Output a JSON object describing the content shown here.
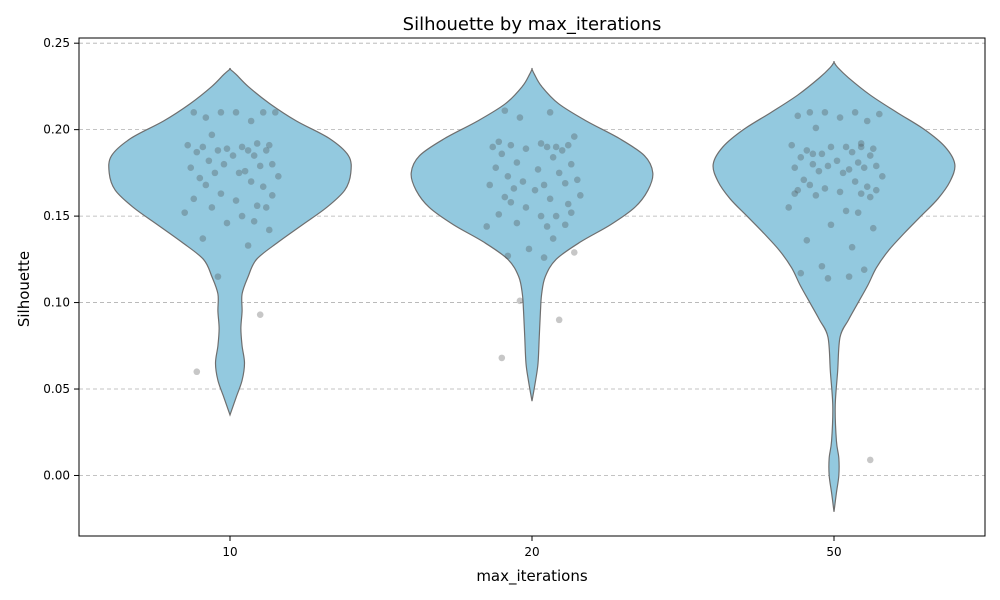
{
  "chart_data": {
    "type": "violin",
    "title": "Silhouette by max_iterations",
    "xlabel": "max_iterations",
    "ylabel": "Silhouette",
    "categories": [
      "10",
      "20",
      "50"
    ],
    "ylim": [
      -0.035,
      0.253
    ],
    "yticks": [
      0.0,
      0.05,
      0.1,
      0.15,
      0.2,
      0.25
    ],
    "ytick_labels": [
      "0.00",
      "0.05",
      "0.10",
      "0.15",
      "0.20",
      "0.25"
    ],
    "grid": {
      "y": true,
      "style": "dashed"
    },
    "colors": {
      "violin_fill": "#93c9df",
      "violin_edge": "#6e6e6e",
      "points": "#444444"
    },
    "violins": [
      {
        "category": "10",
        "range": [
          0.035,
          0.235
        ],
        "profile": [
          [
            0.035,
            0.0
          ],
          [
            0.045,
            0.05
          ],
          [
            0.055,
            0.1
          ],
          [
            0.065,
            0.12
          ],
          [
            0.075,
            0.1
          ],
          [
            0.085,
            0.09
          ],
          [
            0.095,
            0.1
          ],
          [
            0.105,
            0.1
          ],
          [
            0.115,
            0.15
          ],
          [
            0.125,
            0.22
          ],
          [
            0.135,
            0.4
          ],
          [
            0.145,
            0.6
          ],
          [
            0.155,
            0.8
          ],
          [
            0.165,
            0.95
          ],
          [
            0.175,
            1.0
          ],
          [
            0.185,
            0.98
          ],
          [
            0.195,
            0.82
          ],
          [
            0.205,
            0.55
          ],
          [
            0.215,
            0.33
          ],
          [
            0.225,
            0.15
          ],
          [
            0.232,
            0.05
          ],
          [
            0.235,
            0.0
          ]
        ]
      },
      {
        "category": "20",
        "range": [
          0.043,
          0.235
        ],
        "profile": [
          [
            0.043,
            0.0
          ],
          [
            0.055,
            0.03
          ],
          [
            0.065,
            0.05
          ],
          [
            0.08,
            0.06
          ],
          [
            0.095,
            0.07
          ],
          [
            0.105,
            0.08
          ],
          [
            0.115,
            0.11
          ],
          [
            0.125,
            0.2
          ],
          [
            0.135,
            0.4
          ],
          [
            0.145,
            0.65
          ],
          [
            0.155,
            0.85
          ],
          [
            0.165,
            0.96
          ],
          [
            0.175,
            1.0
          ],
          [
            0.185,
            0.93
          ],
          [
            0.195,
            0.72
          ],
          [
            0.205,
            0.45
          ],
          [
            0.215,
            0.22
          ],
          [
            0.225,
            0.08
          ],
          [
            0.232,
            0.02
          ],
          [
            0.235,
            0.0
          ]
        ]
      },
      {
        "category": "50",
        "range": [
          -0.021,
          0.239
        ],
        "profile": [
          [
            -0.021,
            0.0
          ],
          [
            -0.01,
            0.02
          ],
          [
            0.0,
            0.04
          ],
          [
            0.01,
            0.04
          ],
          [
            0.02,
            0.02
          ],
          [
            0.04,
            0.01
          ],
          [
            0.06,
            0.03
          ],
          [
            0.08,
            0.05
          ],
          [
            0.09,
            0.12
          ],
          [
            0.1,
            0.2
          ],
          [
            0.11,
            0.28
          ],
          [
            0.12,
            0.35
          ],
          [
            0.13,
            0.45
          ],
          [
            0.14,
            0.58
          ],
          [
            0.15,
            0.72
          ],
          [
            0.16,
            0.86
          ],
          [
            0.17,
            0.96
          ],
          [
            0.18,
            1.0
          ],
          [
            0.19,
            0.92
          ],
          [
            0.2,
            0.75
          ],
          [
            0.21,
            0.52
          ],
          [
            0.22,
            0.3
          ],
          [
            0.23,
            0.12
          ],
          [
            0.236,
            0.03
          ],
          [
            0.239,
            0.0
          ]
        ]
      }
    ],
    "points": [
      {
        "category": "10",
        "jitter": [
          -0.08,
          0.07,
          -0.03,
          0.15,
          -0.12,
          0.02,
          0.11,
          -0.06,
          0.09,
          -0.14,
          0.04,
          -0.01,
          0.13,
          -0.09,
          0.06,
          -0.04,
          0.12,
          -0.11,
          0.01,
          0.08,
          -0.07,
          0.14,
          -0.02,
          0.1,
          -0.13,
          0.05,
          -0.05,
          0.03,
          0.16,
          -0.1,
          0.07,
          -0.08,
          0.11,
          -0.03,
          0.14,
          -0.12,
          0.02,
          0.09,
          -0.06,
          0.12,
          -0.15,
          0.04,
          0.08,
          -0.01,
          0.13,
          -0.09,
          0.06,
          -0.04,
          0.1,
          -0.11
        ],
        "values": [
          0.207,
          0.205,
          0.21,
          0.21,
          0.21,
          0.21,
          0.21,
          0.197,
          0.192,
          0.191,
          0.19,
          0.189,
          0.191,
          0.19,
          0.188,
          0.188,
          0.188,
          0.187,
          0.185,
          0.185,
          0.182,
          0.18,
          0.18,
          0.179,
          0.178,
          0.176,
          0.175,
          0.175,
          0.173,
          0.172,
          0.17,
          0.168,
          0.167,
          0.163,
          0.162,
          0.16,
          0.159,
          0.156,
          0.155,
          0.155,
          0.152,
          0.15,
          0.147,
          0.146,
          0.142,
          0.137,
          0.133,
          0.115,
          0.093,
          0.06
        ]
      },
      {
        "category": "20",
        "jitter": [
          -0.09,
          0.06,
          -0.04,
          0.14,
          -0.11,
          0.03,
          0.12,
          -0.07,
          0.08,
          -0.13,
          0.05,
          -0.02,
          0.1,
          -0.1,
          0.07,
          -0.05,
          0.13,
          -0.12,
          0.02,
          0.09,
          -0.08,
          0.15,
          -0.03,
          0.11,
          -0.14,
          0.04,
          -0.06,
          0.01,
          0.16,
          -0.09,
          0.06,
          -0.07,
          0.12,
          -0.02,
          0.13,
          -0.11,
          0.03,
          0.08,
          -0.05,
          0.11,
          -0.15,
          0.05,
          0.07,
          -0.01,
          0.14,
          -0.08,
          0.04,
          -0.04,
          0.09,
          -0.1
        ],
        "values": [
          0.211,
          0.21,
          0.207,
          0.196,
          0.193,
          0.192,
          0.191,
          0.191,
          0.19,
          0.19,
          0.19,
          0.189,
          0.188,
          0.186,
          0.184,
          0.181,
          0.18,
          0.178,
          0.177,
          0.175,
          0.173,
          0.171,
          0.17,
          0.169,
          0.168,
          0.168,
          0.166,
          0.165,
          0.162,
          0.161,
          0.16,
          0.158,
          0.157,
          0.155,
          0.152,
          0.151,
          0.15,
          0.15,
          0.146,
          0.145,
          0.144,
          0.144,
          0.137,
          0.131,
          0.129,
          0.127,
          0.126,
          0.101,
          0.09,
          0.068
        ]
      },
      {
        "category": "50",
        "jitter": [
          -0.08,
          0.07,
          -0.03,
          0.15,
          -0.12,
          0.02,
          0.11,
          -0.06,
          0.09,
          -0.14,
          0.04,
          -0.01,
          0.13,
          -0.09,
          0.06,
          -0.04,
          0.12,
          -0.11,
          0.01,
          0.08,
          -0.07,
          0.14,
          -0.02,
          0.1,
          -0.13,
          0.05,
          -0.05,
          0.03,
          0.16,
          -0.1,
          0.07,
          -0.08,
          0.11,
          -0.03,
          0.14,
          -0.12,
          0.02,
          0.09,
          -0.06,
          0.12,
          -0.15,
          0.04,
          0.08,
          -0.01,
          0.13,
          -0.09,
          0.06,
          -0.04,
          0.1,
          -0.11,
          0.05,
          -0.02,
          0.12,
          -0.07,
          0.09,
          -0.13
        ],
        "values": [
          0.21,
          0.21,
          0.21,
          0.209,
          0.208,
          0.207,
          0.205,
          0.201,
          0.192,
          0.191,
          0.19,
          0.19,
          0.189,
          0.188,
          0.187,
          0.186,
          0.185,
          0.184,
          0.182,
          0.181,
          0.18,
          0.179,
          0.179,
          0.178,
          0.178,
          0.177,
          0.176,
          0.175,
          0.173,
          0.171,
          0.17,
          0.168,
          0.167,
          0.166,
          0.165,
          0.165,
          0.164,
          0.163,
          0.162,
          0.161,
          0.155,
          0.153,
          0.152,
          0.145,
          0.143,
          0.136,
          0.132,
          0.121,
          0.119,
          0.117,
          0.115,
          0.114,
          0.009,
          0.186,
          0.19,
          0.163
        ]
      }
    ]
  }
}
